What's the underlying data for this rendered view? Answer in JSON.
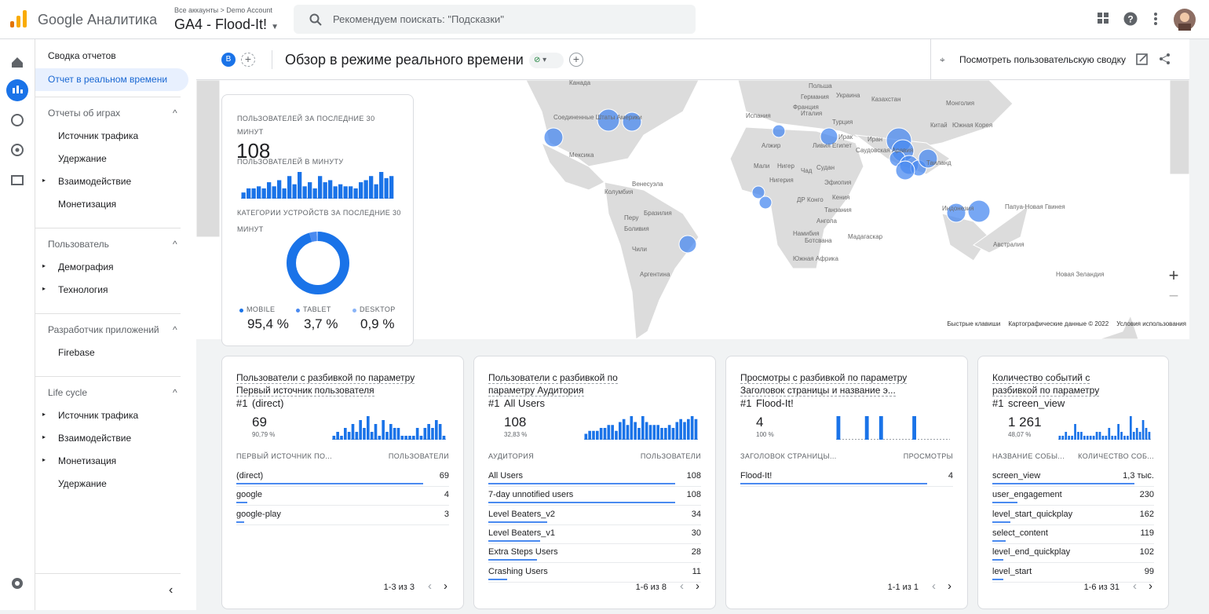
{
  "header": {
    "brand": "Google Аналитика",
    "breadcrumb": "Все аккаунты > Demo Account",
    "property": "GA4 - Flood-It!",
    "search": "Рекомендуем поискать: \"Подсказки\""
  },
  "sidebar": {
    "top": [
      "Сводка отчетов",
      "Отчет в реальном времени"
    ],
    "sections": [
      {
        "title": "Отчеты об играх",
        "items": [
          {
            "label": "Источник трафика",
            "expandable": false
          },
          {
            "label": "Удержание",
            "expandable": false
          },
          {
            "label": "Взаимодействие",
            "expandable": true
          },
          {
            "label": "Монетизация",
            "expandable": false
          }
        ]
      },
      {
        "title": "Пользователь",
        "items": [
          {
            "label": "Демография",
            "expandable": true
          },
          {
            "label": "Технология",
            "expandable": true
          }
        ]
      },
      {
        "title": "Разработчик приложений",
        "items": [
          {
            "label": "Firebase",
            "expandable": false
          }
        ]
      },
      {
        "title": "Life cycle",
        "items": [
          {
            "label": "Источник трафика",
            "expandable": true
          },
          {
            "label": "Взаимодействие",
            "expandable": true
          },
          {
            "label": "Монетизация",
            "expandable": true
          },
          {
            "label": "Удержание",
            "expandable": false
          }
        ]
      }
    ]
  },
  "toolbar": {
    "badge": "B",
    "title": "Обзор в режиме реального времени",
    "action": "Посмотреть пользовательскую сводку"
  },
  "map": {
    "labels": [
      "Канада",
      "Соединенные Штаты Америки",
      "Мексика",
      "Венесуэла",
      "Колумбия",
      "Перу",
      "Бразилия",
      "Боливия",
      "Чили",
      "Аргентина",
      "Германия",
      "Франция",
      "Испания",
      "Италия",
      "Украина",
      "Польша",
      "Казахстан",
      "Монголия",
      "Китай",
      "Южная Корея",
      "Турция",
      "Ирак",
      "Иран",
      "Алжир",
      "Ливия",
      "Египет",
      "Саудовская Аравия",
      "Мали",
      "Нигер",
      "Чад",
      "Судан",
      "Нигерия",
      "Эфиопия",
      "ДР Конго",
      "Кения",
      "Танзания",
      "Ангола",
      "Намибия",
      "Ботсвана",
      "Мадагаскар",
      "Южная Африка",
      "Таиланд",
      "Индонезия",
      "Папуа-Новая Гвинея",
      "Австралия",
      "Новая Зеландия"
    ],
    "footer": [
      "Быстрые клавиши",
      "Картографические данные © 2022",
      "Условия использования"
    ]
  },
  "summary": {
    "users_label": "ПОЛЬЗОВАТЕЛЕЙ ЗА ПОСЛЕДНИЕ 30 МИНУТ",
    "users_value": "108",
    "per_minute_label": "ПОЛЬЗОВАТЕЛЕЙ В МИНУТУ",
    "per_minute": [
      3,
      5,
      5,
      6,
      5,
      8,
      6,
      9,
      5,
      11,
      7,
      13,
      6,
      8,
      5,
      11,
      8,
      9,
      6,
      7,
      6,
      6,
      5,
      8,
      9,
      11,
      7,
      13,
      10,
      11
    ],
    "devices_label": "КАТЕГОРИИ УСТРОЙСТВ ЗА ПОСЛЕДНИЕ 30 МИНУТ",
    "devices": {
      "type": "pie",
      "categories": [
        "MOBILE",
        "TABLET",
        "DESKTOP"
      ],
      "values": [
        95.4,
        3.7,
        0.9
      ],
      "value_labels": [
        "95,4 %",
        "3,7 %",
        "0,9 %"
      ],
      "colors": [
        "#1a73e8",
        "#4a8af0",
        "#8ab4f8"
      ]
    }
  },
  "cards": [
    {
      "title": [
        "Пользователи с разбивкой по параметру",
        "Первый источник пользователя"
      ],
      "rank": "#1",
      "top": "(direct)",
      "value": "69",
      "percent": "90,79 %",
      "spark": [
        1,
        2,
        1,
        3,
        2,
        4,
        2,
        5,
        3,
        6,
        2,
        4,
        1,
        5,
        2,
        4,
        3,
        3,
        1,
        1,
        1,
        1,
        3,
        1,
        3,
        4,
        3,
        5,
        4,
        1
      ],
      "columns": [
        "ПЕРВЫЙ ИСТОЧНИК ПО...",
        "ПОЛЬЗОВАТЕЛИ"
      ],
      "rows": [
        {
          "name": "(direct)",
          "value": 69
        },
        {
          "name": "google",
          "value": 4
        },
        {
          "name": "google-play",
          "value": 3
        }
      ],
      "pager": "1-3 из 3"
    },
    {
      "title": [
        "Пользователи с разбивкой по",
        "параметру Аудитория"
      ],
      "rank": "#1",
      "top": "All Users",
      "value": "108",
      "percent": "32,83 %",
      "spark": [
        2,
        3,
        3,
        3,
        4,
        4,
        5,
        5,
        3,
        6,
        7,
        5,
        8,
        6,
        4,
        8,
        6,
        5,
        5,
        5,
        4,
        4,
        5,
        4,
        6,
        7,
        6,
        7,
        8,
        7
      ],
      "columns": [
        "АУДИТОРИЯ",
        "ПОЛЬЗОВАТЕЛИ"
      ],
      "rows": [
        {
          "name": "All Users",
          "value": 108
        },
        {
          "name": "7-day unnotified users",
          "value": 108
        },
        {
          "name": "Level Beaters_v2",
          "value": 34
        },
        {
          "name": "Level Beaters_v1",
          "value": 30
        },
        {
          "name": "Extra Steps Users",
          "value": 28
        },
        {
          "name": "Crashing Users",
          "value": 11
        }
      ],
      "pager": "1-6 из 8"
    },
    {
      "title": [
        "Просмотры с разбивкой по параметру",
        "Заголовок страницы и название э..."
      ],
      "rank": "#1",
      "top": "Flood-It!",
      "value": "4",
      "percent": "100 %",
      "spark": [
        1,
        0,
        0,
        0,
        0,
        0,
        1,
        0,
        0,
        1,
        0,
        0,
        0,
        0,
        0,
        0,
        1,
        0,
        0,
        0,
        0,
        0,
        0,
        0
      ],
      "columns": [
        "ЗАГОЛОВОК СТРАНИЦЫ...",
        "ПРОСМОТРЫ"
      ],
      "rows": [
        {
          "name": "Flood-It!",
          "value": 4
        }
      ],
      "pager": "1-1 из 1"
    },
    {
      "title": [
        "Количество событий с",
        "разбивкой по параметру"
      ],
      "rank": "#1",
      "top": "screen_view",
      "value": "1 261",
      "percent": "48,07 %",
      "spark": [
        1,
        1,
        2,
        1,
        1,
        4,
        2,
        2,
        1,
        1,
        1,
        1,
        2,
        2,
        1,
        1,
        3,
        1,
        1,
        4,
        2,
        1,
        1,
        6,
        2,
        3,
        2,
        5,
        3,
        2
      ],
      "columns": [
        "НАЗВАНИЕ СОБЫ...",
        "КОЛИЧЕСТВО СОБ..."
      ],
      "rows": [
        {
          "name": "screen_view",
          "value": 1300,
          "value_label": "1,3 тыс."
        },
        {
          "name": "user_engagement",
          "value": 230
        },
        {
          "name": "level_start_quickplay",
          "value": 162
        },
        {
          "name": "select_content",
          "value": 119
        },
        {
          "name": "level_end_quickplay",
          "value": 102
        },
        {
          "name": "level_start",
          "value": 99
        }
      ],
      "pager": "1-6 из 31"
    }
  ]
}
